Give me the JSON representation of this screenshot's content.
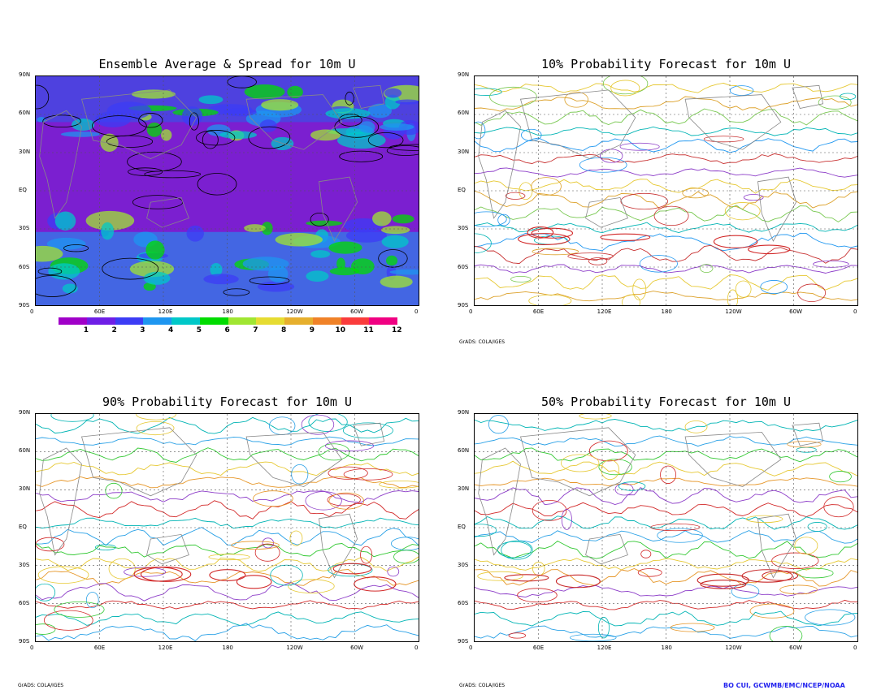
{
  "panels": [
    {
      "id": "spread",
      "title": "Ensemble Average & Spread for 10m U",
      "credit": ""
    },
    {
      "id": "p10",
      "title": "10% Probability Forecast for 10m U",
      "credit": "GrADS: COLA/IGES"
    },
    {
      "id": "p90",
      "title": "90% Probability Forecast for 10m U",
      "credit": "GrADS: COLA/IGES"
    },
    {
      "id": "p50",
      "title": "50% Probability Forecast for 10m U",
      "credit": "GrADS: COLA/IGES"
    }
  ],
  "lat_labels": [
    "90N",
    "60N",
    "30N",
    "EQ",
    "30S",
    "60S",
    "90S"
  ],
  "lon_labels": [
    "0",
    "60E",
    "120E",
    "180",
    "120W",
    "60W",
    "0"
  ],
  "colorbar": {
    "labels": [
      "1",
      "2",
      "3",
      "4",
      "5",
      "6",
      "7",
      "8",
      "9",
      "10",
      "11",
      "12"
    ],
    "colors": [
      "#a000c8",
      "#6e1ee6",
      "#3c3cf5",
      "#1e96f0",
      "#00c8c8",
      "#00dc00",
      "#a0e632",
      "#e6dc32",
      "#e6af2d",
      "#f08228",
      "#fa3c3c",
      "#f00082"
    ]
  },
  "author": "BO CUI, GCWMB/EMC/NCEP/NOAA"
}
